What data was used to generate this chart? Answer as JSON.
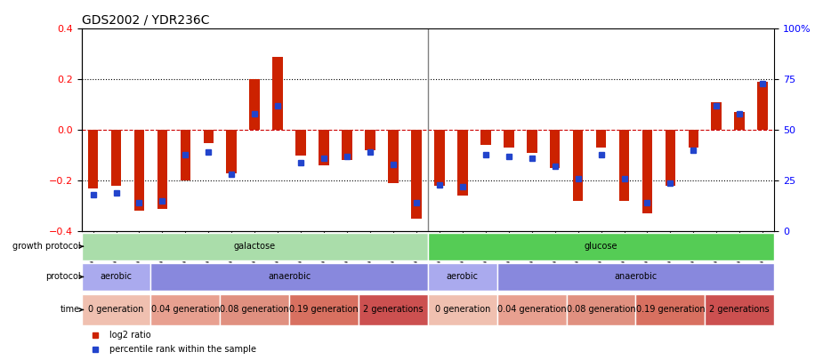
{
  "title": "GDS2002 / YDR236C",
  "samples": [
    "GSM41252",
    "GSM41253",
    "GSM41254",
    "GSM41255",
    "GSM41256",
    "GSM41257",
    "GSM41258",
    "GSM41259",
    "GSM41260",
    "GSM41264",
    "GSM41265",
    "GSM41266",
    "GSM41279",
    "GSM41280",
    "GSM41281",
    "GSM41785",
    "GSM41786",
    "GSM41787",
    "GSM41788",
    "GSM41789",
    "GSM41790",
    "GSM41791",
    "GSM41792",
    "GSM41793",
    "GSM41797",
    "GSM41798",
    "GSM41799",
    "GSM41811",
    "GSM41812",
    "GSM41813"
  ],
  "log2_ratio": [
    -0.23,
    -0.22,
    -0.32,
    -0.31,
    -0.2,
    -0.05,
    -0.17,
    0.2,
    0.29,
    -0.1,
    -0.14,
    -0.12,
    -0.08,
    -0.21,
    -0.35,
    -0.22,
    -0.26,
    -0.06,
    -0.07,
    -0.09,
    -0.15,
    -0.28,
    -0.07,
    -0.28,
    -0.33,
    -0.22,
    -0.07,
    0.11,
    0.07,
    0.19
  ],
  "percentile": [
    18,
    19,
    14,
    15,
    38,
    39,
    28,
    58,
    62,
    34,
    36,
    37,
    39,
    33,
    14,
    23,
    22,
    38,
    37,
    36,
    32,
    26,
    38,
    26,
    14,
    24,
    40,
    62,
    58,
    73
  ],
  "ylim_left": [
    -0.4,
    0.4
  ],
  "ylim_right": [
    0,
    100
  ],
  "yticks_left": [
    -0.4,
    -0.2,
    0.0,
    0.2,
    0.4
  ],
  "yticks_right": [
    0,
    25,
    50,
    75,
    100
  ],
  "ytick_labels_right": [
    "0",
    "25",
    "50",
    "75",
    "100%"
  ],
  "bar_color": "#cc2200",
  "dot_color": "#2244cc",
  "zero_line_color": "#cc0000",
  "grid_color": "#000000",
  "growth_protocol_row": {
    "label": "growth protocol",
    "groups": [
      {
        "text": "galactose",
        "start": 0,
        "end": 15,
        "color": "#aaddaa"
      },
      {
        "text": "glucose",
        "start": 15,
        "end": 30,
        "color": "#55cc55"
      }
    ]
  },
  "protocol_row": {
    "label": "protocol",
    "groups": [
      {
        "text": "aerobic",
        "start": 0,
        "end": 3,
        "color": "#aaaaee"
      },
      {
        "text": "anaerobic",
        "start": 3,
        "end": 15,
        "color": "#8888dd"
      },
      {
        "text": "aerobic",
        "start": 15,
        "end": 18,
        "color": "#aaaaee"
      },
      {
        "text": "anaerobic",
        "start": 18,
        "end": 30,
        "color": "#8888dd"
      }
    ]
  },
  "time_row": {
    "label": "time",
    "groups": [
      {
        "text": "0 generation",
        "start": 0,
        "end": 3,
        "color": "#f0c0b0"
      },
      {
        "text": "0.04 generation",
        "start": 3,
        "end": 6,
        "color": "#e8a090"
      },
      {
        "text": "0.08 generation",
        "start": 6,
        "end": 9,
        "color": "#e09080"
      },
      {
        "text": "0.19 generation",
        "start": 9,
        "end": 12,
        "color": "#d87060"
      },
      {
        "text": "2 generations",
        "start": 12,
        "end": 15,
        "color": "#cc5050"
      },
      {
        "text": "0 generation",
        "start": 15,
        "end": 18,
        "color": "#f0c0b0"
      },
      {
        "text": "0.04 generation",
        "start": 18,
        "end": 21,
        "color": "#e8a090"
      },
      {
        "text": "0.08 generation",
        "start": 21,
        "end": 24,
        "color": "#e09080"
      },
      {
        "text": "0.19 generation",
        "start": 24,
        "end": 27,
        "color": "#d87060"
      },
      {
        "text": "2 generations",
        "start": 27,
        "end": 30,
        "color": "#cc5050"
      }
    ]
  },
  "legend_items": [
    {
      "label": "log2 ratio",
      "color": "#cc2200"
    },
    {
      "label": "percentile rank within the sample",
      "color": "#2244cc"
    }
  ]
}
